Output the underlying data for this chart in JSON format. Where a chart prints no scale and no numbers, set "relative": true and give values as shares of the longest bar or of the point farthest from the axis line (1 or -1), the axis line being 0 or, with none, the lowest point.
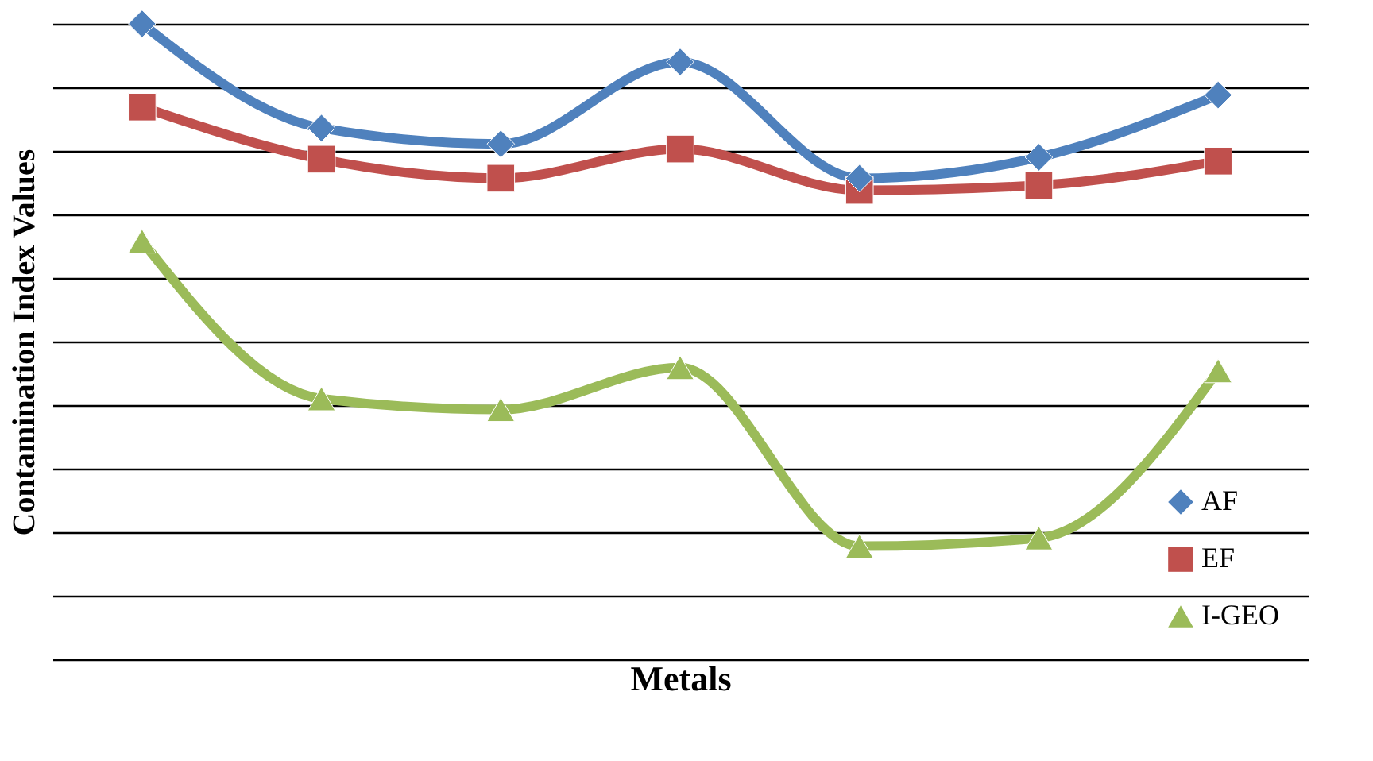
{
  "chart_data": {
    "type": "line",
    "xlabel": "Metals",
    "ylabel": "Contamination Index Values",
    "relative": true,
    "categories": [
      null,
      null,
      null,
      null,
      null,
      null,
      null
    ],
    "grid": "y",
    "legend": "bottom right",
    "line_style": "solid",
    "series": [
      {
        "name": "AF",
        "color": "#4f81bd",
        "marker": "diamond",
        "values": [
          1,
          0.836,
          0.811,
          0.94,
          0.757,
          0.79,
          0.888
        ]
      },
      {
        "name": "EF",
        "color": "#c0504d",
        "marker": "square",
        "values": [
          0.869,
          0.787,
          0.757,
          0.803,
          0.738,
          0.746,
          0.784
        ]
      },
      {
        "name": "I-GEO",
        "color": "#9bbb59",
        "marker": "triangle",
        "values": [
          0.658,
          0.41,
          0.393,
          0.459,
          0.178,
          0.191,
          0.454
        ]
      }
    ]
  }
}
